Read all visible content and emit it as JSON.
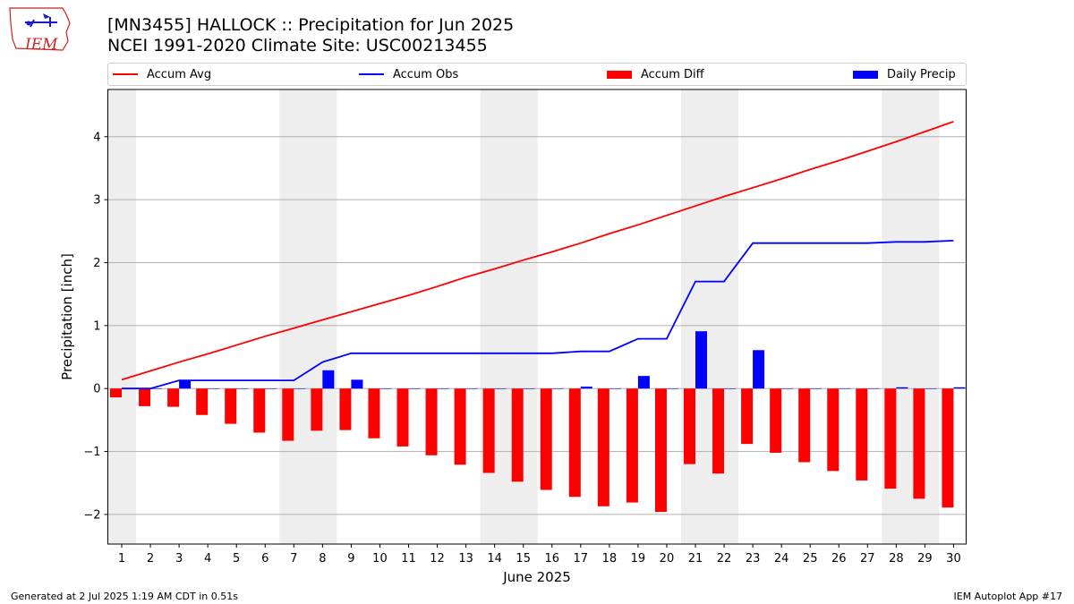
{
  "header": {
    "title_line1": "[MN3455] HALLOCK :: Precipitation for Jun 2025",
    "title_line2": "NCEI 1991-2020 Climate Site: USC00213455"
  },
  "logo": {
    "text": "IEM"
  },
  "legend": {
    "placement": "top, above plot",
    "items": [
      {
        "label": "Accum Avg",
        "kind": "line",
        "color": "#ff0000"
      },
      {
        "label": "Accum Obs",
        "kind": "line",
        "color": "#0000ff"
      },
      {
        "label": "Accum Diff",
        "kind": "bar",
        "color": "#ff0000"
      },
      {
        "label": "Daily Precip",
        "kind": "bar",
        "color": "#0000ff"
      }
    ]
  },
  "footer": {
    "left": "Generated at 2 Jul 2025 1:19 AM CDT in 0.51s",
    "right": "IEM Autoplot App #17"
  },
  "chart_data": {
    "type": "bar",
    "xlabel": "June 2025",
    "ylabel": "Precipitation [inch]",
    "ylim": [
      -2.47,
      4.75
    ],
    "yticks": [
      -2,
      -1,
      0,
      1,
      2,
      3,
      4
    ],
    "grid": "horizontal",
    "weekend_shading_color": "#eeeeee",
    "weekend_days": [
      1,
      7,
      8,
      14,
      15,
      21,
      22,
      28,
      29
    ],
    "categories": [
      "1",
      "2",
      "3",
      "4",
      "5",
      "6",
      "7",
      "8",
      "9",
      "10",
      "11",
      "12",
      "13",
      "14",
      "15",
      "16",
      "17",
      "18",
      "19",
      "20",
      "21",
      "22",
      "23",
      "24",
      "25",
      "26",
      "27",
      "28",
      "29",
      "30"
    ],
    "series": [
      {
        "name": "Accum Avg",
        "type": "line",
        "color": "#ff0000",
        "values": [
          0.14,
          0.28,
          0.42,
          0.55,
          0.69,
          0.83,
          0.96,
          1.09,
          1.22,
          1.35,
          1.48,
          1.62,
          1.77,
          1.9,
          2.04,
          2.17,
          2.31,
          2.46,
          2.6,
          2.75,
          2.9,
          3.05,
          3.19,
          3.33,
          3.48,
          3.62,
          3.77,
          3.92,
          4.08,
          4.24
        ]
      },
      {
        "name": "Accum Obs",
        "type": "line",
        "color": "#0000ff",
        "values": [
          0.0,
          0.0,
          0.13,
          0.13,
          0.13,
          0.13,
          0.13,
          0.42,
          0.56,
          0.56,
          0.56,
          0.56,
          0.56,
          0.56,
          0.56,
          0.56,
          0.59,
          0.59,
          0.79,
          0.79,
          1.7,
          1.7,
          2.31,
          2.31,
          2.31,
          2.31,
          2.31,
          2.33,
          2.33,
          2.35
        ]
      },
      {
        "name": "Accum Diff",
        "type": "bar",
        "color": "#ff0000",
        "values": [
          -0.14,
          -0.28,
          -0.29,
          -0.42,
          -0.56,
          -0.7,
          -0.83,
          -0.67,
          -0.66,
          -0.79,
          -0.92,
          -1.06,
          -1.21,
          -1.34,
          -1.48,
          -1.61,
          -1.72,
          -1.87,
          -1.81,
          -1.96,
          -1.2,
          -1.35,
          -0.88,
          -1.02,
          -1.17,
          -1.31,
          -1.46,
          -1.59,
          -1.75,
          -1.89
        ]
      },
      {
        "name": "Daily Precip",
        "type": "bar",
        "color": "#0000ff",
        "values": [
          0.0,
          0.0,
          0.13,
          0.0,
          0.0,
          0.0,
          0.0,
          0.29,
          0.14,
          0.0,
          0.0,
          0.0,
          0.0,
          0.0,
          0.0,
          0.0,
          0.03,
          0.0,
          0.2,
          0.0,
          0.91,
          0.0,
          0.61,
          0.0,
          0.0,
          0.0,
          0.0,
          0.02,
          0.0,
          0.02
        ]
      }
    ]
  }
}
